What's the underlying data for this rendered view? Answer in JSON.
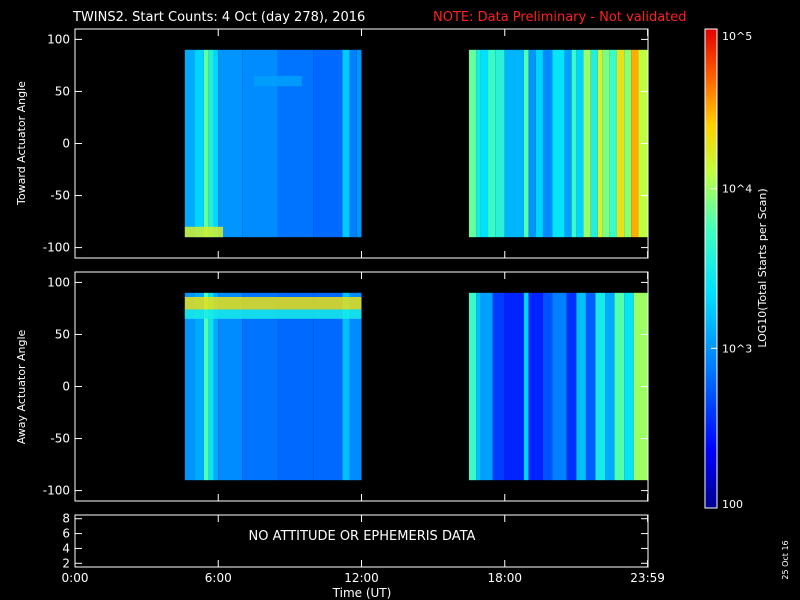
{
  "title": {
    "main": "TWINS2. Start Counts:  4 Oct (day 278), 2016",
    "note": "NOTE: Data Preliminary - Not validated"
  },
  "panels": {
    "toward": {
      "ylabel": "Toward Actuator Angle"
    },
    "away": {
      "ylabel": "Away Actuator Angle"
    },
    "attitude": {
      "message": "NO ATTITUDE OR EPHEMERIS DATA"
    }
  },
  "xaxis": {
    "label": "Time (UT)",
    "tick_labels": [
      "0:00",
      "6:00",
      "12:00",
      "18:00",
      "23:59"
    ]
  },
  "colorbar": {
    "label": "LOG10(Total Starts per Scan)",
    "tick_labels": [
      "100",
      "10^3",
      "10^4",
      "10^5"
    ]
  },
  "date_stamp": "25 Oct 16",
  "colors": {
    "background": "#000000",
    "axes": "#ffffff",
    "note": "#ff2020"
  },
  "chart_data": [
    {
      "type": "heatmap",
      "name": "toward",
      "xlabel": "Time (UT)",
      "ylabel": "Toward Actuator Angle",
      "xlim": [
        0,
        24
      ],
      "ylim": [
        -110,
        110
      ],
      "y_ticks": [
        100,
        50,
        0,
        -50,
        -100
      ],
      "y_range_data": [
        -90,
        90
      ],
      "coverage_hours": [
        [
          4.6,
          12.0
        ],
        [
          16.5,
          24.0
        ]
      ],
      "bands": [
        [
          4.6,
          5.0,
          3.1
        ],
        [
          5.0,
          5.4,
          3.3
        ],
        [
          5.4,
          5.6,
          3.85
        ],
        [
          5.6,
          5.8,
          3.55
        ],
        [
          5.8,
          6.0,
          3.3
        ],
        [
          6.0,
          7.0,
          3.0
        ],
        [
          7.0,
          8.5,
          2.95
        ],
        [
          8.5,
          10.0,
          2.85
        ],
        [
          10.0,
          11.2,
          2.8
        ],
        [
          11.2,
          11.5,
          3.25
        ],
        [
          11.5,
          11.8,
          2.9
        ],
        [
          11.8,
          12.0,
          3.0
        ],
        [
          16.5,
          16.8,
          3.85
        ],
        [
          16.8,
          17.0,
          3.5
        ],
        [
          17.0,
          17.3,
          3.35
        ],
        [
          17.3,
          17.6,
          3.7
        ],
        [
          17.6,
          18.0,
          3.6
        ],
        [
          18.0,
          18.8,
          3.15
        ],
        [
          18.8,
          19.0,
          3.8
        ],
        [
          19.0,
          19.3,
          3.0
        ],
        [
          19.3,
          19.6,
          3.3
        ],
        [
          19.6,
          20.0,
          2.95
        ],
        [
          20.0,
          20.5,
          3.4
        ],
        [
          20.5,
          20.8,
          3.05
        ],
        [
          20.8,
          21.0,
          3.7
        ],
        [
          21.0,
          21.3,
          3.3
        ],
        [
          21.3,
          21.6,
          4.0
        ],
        [
          21.6,
          21.9,
          3.55
        ],
        [
          21.9,
          22.1,
          4.2
        ],
        [
          22.1,
          22.4,
          3.9
        ],
        [
          22.4,
          22.7,
          3.7
        ],
        [
          22.7,
          23.0,
          4.3
        ],
        [
          23.0,
          23.3,
          3.95
        ],
        [
          23.3,
          23.6,
          4.5
        ],
        [
          23.6,
          24.0,
          4.1
        ]
      ],
      "features": [
        {
          "desc": "enhancement near -85 deg",
          "t0": 4.6,
          "t1": 6.2,
          "y0": -90,
          "y1": -80,
          "log10": 4.2
        },
        {
          "desc": "enhancement near 60 deg",
          "t0": 7.5,
          "t1": 9.5,
          "y0": 55,
          "y1": 65,
          "log10": 3.05
        }
      ]
    },
    {
      "type": "heatmap",
      "name": "away",
      "xlabel": "Time (UT)",
      "ylabel": "Away Actuator Angle",
      "xlim": [
        0,
        24
      ],
      "ylim": [
        -110,
        110
      ],
      "y_ticks": [
        100,
        50,
        0,
        -50,
        -100
      ],
      "y_range_data": [
        -90,
        90
      ],
      "coverage_hours": [
        [
          4.6,
          12.0
        ],
        [
          16.5,
          24.0
        ]
      ],
      "bands": [
        [
          4.6,
          5.0,
          3.0
        ],
        [
          5.0,
          5.4,
          3.1
        ],
        [
          5.4,
          5.6,
          3.8
        ],
        [
          5.6,
          5.8,
          3.4
        ],
        [
          5.8,
          6.0,
          3.1
        ],
        [
          6.0,
          7.0,
          2.95
        ],
        [
          7.0,
          8.5,
          2.85
        ],
        [
          8.5,
          10.0,
          2.8
        ],
        [
          10.0,
          11.2,
          2.8
        ],
        [
          11.2,
          11.5,
          3.2
        ],
        [
          11.5,
          12.0,
          2.95
        ],
        [
          16.5,
          16.8,
          3.7
        ],
        [
          16.8,
          17.0,
          3.2
        ],
        [
          17.0,
          17.5,
          3.05
        ],
        [
          17.5,
          18.0,
          2.6
        ],
        [
          18.0,
          18.8,
          2.5
        ],
        [
          18.8,
          19.0,
          3.3
        ],
        [
          19.0,
          19.6,
          2.5
        ],
        [
          19.6,
          20.0,
          2.7
        ],
        [
          20.0,
          20.6,
          2.9
        ],
        [
          20.6,
          21.0,
          2.55
        ],
        [
          21.0,
          21.4,
          3.2
        ],
        [
          21.4,
          21.8,
          2.75
        ],
        [
          21.8,
          22.2,
          3.5
        ],
        [
          22.2,
          22.6,
          3.1
        ],
        [
          22.6,
          23.0,
          3.8
        ],
        [
          23.0,
          23.4,
          3.4
        ],
        [
          23.4,
          24.0,
          4.0
        ]
      ],
      "features": [
        {
          "desc": "enhancement near 80 deg",
          "t0": 4.6,
          "t1": 12.0,
          "y0": 74,
          "y1": 86,
          "log10": 4.3
        },
        {
          "desc": "enhancement near 70 deg",
          "t0": 4.6,
          "t1": 12.0,
          "y0": 65,
          "y1": 74,
          "log10": 3.5
        }
      ]
    },
    {
      "type": "line",
      "name": "attitude",
      "xlim": [
        0,
        24
      ],
      "ylim": [
        1.5,
        8.5
      ],
      "y_ticks": [
        8,
        6,
        4,
        2
      ],
      "series": []
    }
  ]
}
